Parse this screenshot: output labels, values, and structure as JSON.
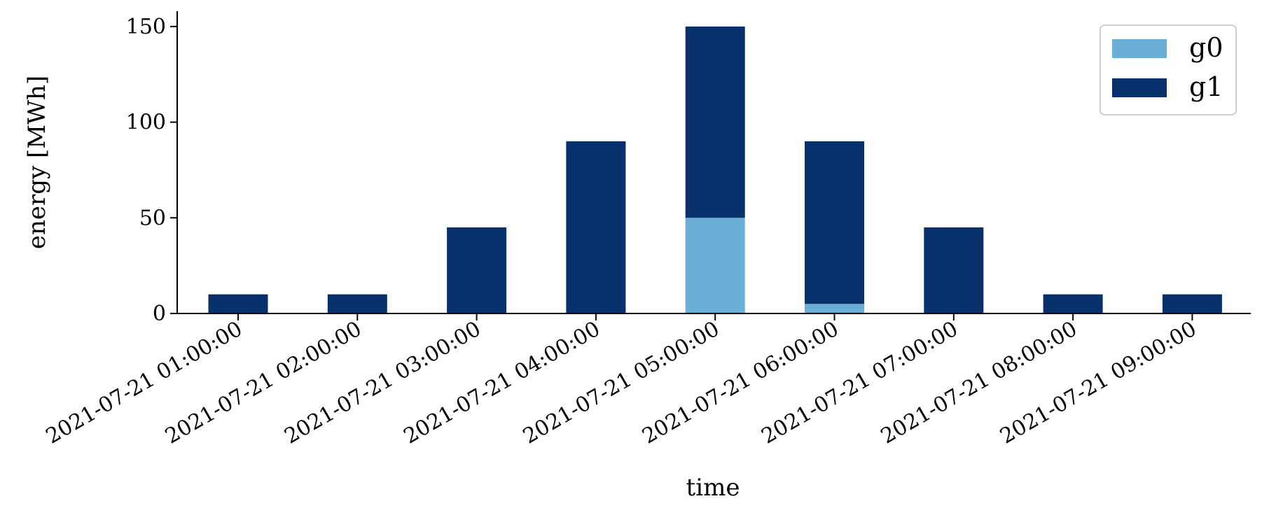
{
  "chart_data": {
    "type": "bar",
    "stacked": true,
    "xlabel": "time",
    "ylabel": "energy [MWh]",
    "categories": [
      "2021-07-21 01:00:00",
      "2021-07-21 02:00:00",
      "2021-07-21 03:00:00",
      "2021-07-21 04:00:00",
      "2021-07-21 05:00:00",
      "2021-07-21 06:00:00",
      "2021-07-21 07:00:00",
      "2021-07-21 08:00:00",
      "2021-07-21 09:00:00"
    ],
    "series": [
      {
        "name": "g0",
        "color": "#6baed6",
        "values": [
          0,
          0,
          0,
          0,
          50,
          5,
          0,
          0,
          0
        ]
      },
      {
        "name": "g1",
        "color": "#08306b",
        "values": [
          10,
          10,
          45,
          90,
          100,
          85,
          45,
          10,
          10
        ]
      }
    ],
    "ylim": [
      0,
      158
    ],
    "yticks": [
      0,
      50,
      100,
      150
    ],
    "grid": false,
    "legend_position": "top-right"
  }
}
